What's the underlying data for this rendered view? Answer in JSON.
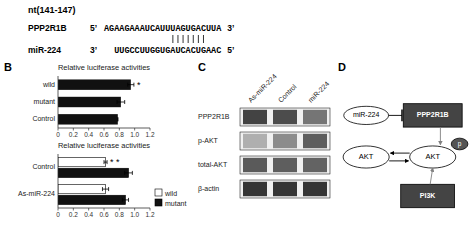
{
  "chart_data": [
    {
      "type": "text",
      "title": "nt(141-147)",
      "annotations": [
        "PPP2R1B",
        "5’",
        "AGAAGAAAUCAUUUAGUGACUUA",
        "3’",
        "miR-224",
        "3’",
        "UUGCCUUGGUGAUCACUGAAC",
        "5’"
      ]
    },
    {
      "type": "bar",
      "orientation": "horizontal",
      "title": "Relative luciferase activities",
      "categories": [
        "wild",
        "mutant",
        "Control"
      ],
      "values": [
        0.95,
        0.82,
        0.78
      ],
      "errors": [
        0.04,
        0.05,
        0.0
      ],
      "color": "#111111",
      "xlim": [
        0,
        1.2
      ],
      "xticks": [
        0,
        0.2,
        0.4,
        0.6,
        0.8,
        {
          "value": 1,
          "label": "1.0"
        },
        1.2
      ],
      "annotations": [
        "B",
        "*"
      ]
    },
    {
      "type": "bar",
      "orientation": "horizontal",
      "title": "Relative luciferase activities",
      "categories": [
        "Control",
        "As-miR-224"
      ],
      "series": [
        {
          "name": "wild",
          "color": "#ffffff",
          "values": [
            0.62,
            0.62
          ],
          "errors": [
            0.02,
            0.04
          ]
        },
        {
          "name": "mutant",
          "color": "#111111",
          "values": [
            0.92,
            0.88
          ],
          "errors": [
            0.05,
            0.04
          ]
        }
      ],
      "xlim": [
        0,
        1.2
      ],
      "xticks": [
        0,
        0.2,
        0.4,
        0.6,
        0.8,
        {
          "value": 1,
          "label": "1.0"
        },
        1.2
      ],
      "legend": "lower right",
      "annotations": [
        "* *"
      ]
    },
    {
      "type": "heatmap",
      "annotations": [
        "C"
      ],
      "rows": [
        "PPP2R1B",
        "p-AKT",
        "total-AKT",
        "β-actin"
      ],
      "columns": [
        "As-miR-224",
        "Control",
        "miR-224"
      ],
      "cells": [
        [
          0.82,
          0.78,
          0.6
        ],
        [
          0.35,
          0.5,
          0.7
        ],
        [
          0.72,
          0.7,
          0.68
        ],
        [
          0.88,
          0.88,
          0.88
        ]
      ]
    },
    {
      "type": "diagram",
      "annotations": [
        "D",
        "miR-224",
        "PPP2R1B",
        "AKT",
        "AKT",
        "p",
        "PI3K"
      ]
    }
  ]
}
